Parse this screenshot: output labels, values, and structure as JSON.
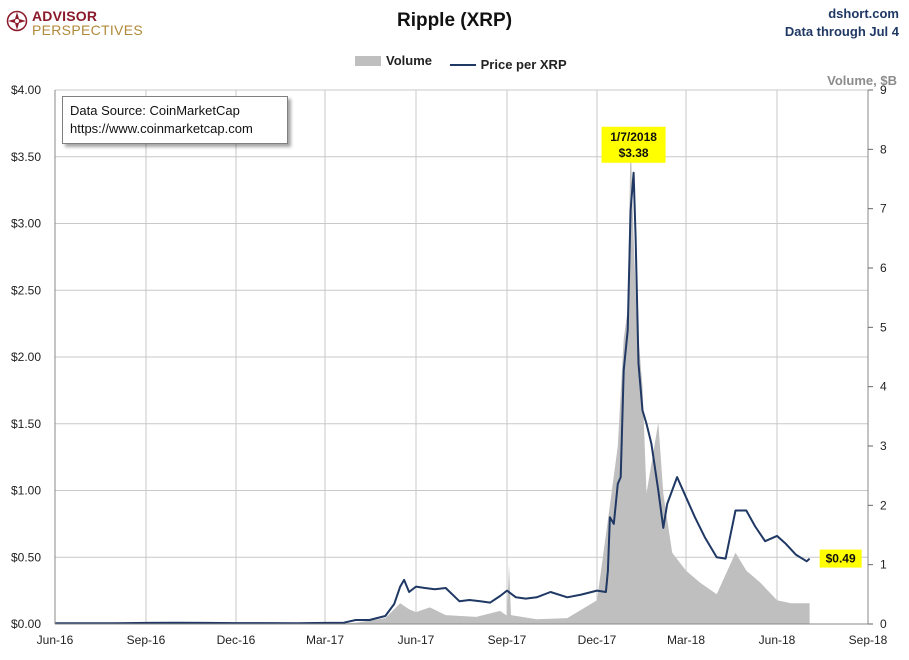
{
  "logo": {
    "line1": "ADVISOR",
    "line2": "PERSPECTIVES"
  },
  "header": {
    "site": "dshort.com",
    "date_note": "Data through Jul 4"
  },
  "source_box": {
    "line1": "Data Source: CoinMarketCap",
    "line2": "https://www.coinmarketcap.com"
  },
  "colors": {
    "price": "#1f3864",
    "volume": "#bfbfbf",
    "callout": "#ffff00",
    "brand": "#8b1a2b",
    "brand2": "#b08a3a"
  },
  "chart_data": {
    "type": "line",
    "title": "Ripple (XRP)",
    "xlabel": "",
    "ylabel": "",
    "y2label": "Volume, $B",
    "legend": {
      "position": "top-center",
      "entries": [
        "Volume",
        "Price per XRP"
      ]
    },
    "grid": true,
    "x_ticks": [
      "Jun-16",
      "Sep-16",
      "Dec-16",
      "Mar-17",
      "Jun-17",
      "Sep-17",
      "Dec-17",
      "Mar-18",
      "Jun-18",
      "Sep-18"
    ],
    "y_ticks": [
      "$0.00",
      "$0.50",
      "$1.00",
      "$1.50",
      "$2.00",
      "$2.50",
      "$3.00",
      "$3.50",
      "$4.00"
    ],
    "y2_ticks": [
      "0",
      "1",
      "2",
      "3",
      "4",
      "5",
      "6",
      "7",
      "8",
      "9"
    ],
    "ylim": [
      0,
      4
    ],
    "y2lim": [
      0,
      9
    ],
    "annotations": [
      {
        "date": "2018-01-07",
        "lines": [
          "1/7/2018",
          "$3.38"
        ]
      },
      {
        "date": "2018-07-04",
        "lines": [
          "$0.49"
        ]
      }
    ],
    "series": [
      {
        "name": "Price per XRP",
        "axis": "left",
        "points": [
          [
            "2016-06-01",
            0.006
          ],
          [
            "2016-07-01",
            0.006
          ],
          [
            "2016-08-01",
            0.006
          ],
          [
            "2016-09-01",
            0.008
          ],
          [
            "2016-10-01",
            0.009
          ],
          [
            "2016-11-01",
            0.008
          ],
          [
            "2016-12-01",
            0.007
          ],
          [
            "2017-01-01",
            0.007
          ],
          [
            "2017-02-01",
            0.006
          ],
          [
            "2017-03-01",
            0.008
          ],
          [
            "2017-03-20",
            0.01
          ],
          [
            "2017-04-01",
            0.03
          ],
          [
            "2017-04-15",
            0.03
          ],
          [
            "2017-05-01",
            0.06
          ],
          [
            "2017-05-10",
            0.15
          ],
          [
            "2017-05-16",
            0.28
          ],
          [
            "2017-05-20",
            0.33
          ],
          [
            "2017-05-25",
            0.24
          ],
          [
            "2017-06-01",
            0.28
          ],
          [
            "2017-06-10",
            0.27
          ],
          [
            "2017-06-20",
            0.26
          ],
          [
            "2017-07-01",
            0.27
          ],
          [
            "2017-07-15",
            0.17
          ],
          [
            "2017-07-25",
            0.18
          ],
          [
            "2017-08-05",
            0.17
          ],
          [
            "2017-08-15",
            0.16
          ],
          [
            "2017-08-25",
            0.21
          ],
          [
            "2017-09-01",
            0.25
          ],
          [
            "2017-09-10",
            0.2
          ],
          [
            "2017-09-20",
            0.19
          ],
          [
            "2017-10-01",
            0.2
          ],
          [
            "2017-10-15",
            0.24
          ],
          [
            "2017-11-01",
            0.2
          ],
          [
            "2017-11-15",
            0.22
          ],
          [
            "2017-12-01",
            0.25
          ],
          [
            "2017-12-10",
            0.24
          ],
          [
            "2017-12-12",
            0.4
          ],
          [
            "2017-12-14",
            0.8
          ],
          [
            "2017-12-18",
            0.75
          ],
          [
            "2017-12-22",
            1.05
          ],
          [
            "2017-12-25",
            1.1
          ],
          [
            "2017-12-28",
            1.9
          ],
          [
            "2018-01-01",
            2.2
          ],
          [
            "2018-01-04",
            3.1
          ],
          [
            "2018-01-07",
            3.38
          ],
          [
            "2018-01-09",
            2.9
          ],
          [
            "2018-01-12",
            1.95
          ],
          [
            "2018-01-16",
            1.6
          ],
          [
            "2018-01-20",
            1.5
          ],
          [
            "2018-01-25",
            1.35
          ],
          [
            "2018-02-01",
            1.0
          ],
          [
            "2018-02-06",
            0.72
          ],
          [
            "2018-02-10",
            0.9
          ],
          [
            "2018-02-20",
            1.1
          ],
          [
            "2018-03-01",
            0.95
          ],
          [
            "2018-03-10",
            0.8
          ],
          [
            "2018-03-20",
            0.65
          ],
          [
            "2018-04-01",
            0.5
          ],
          [
            "2018-04-10",
            0.49
          ],
          [
            "2018-04-20",
            0.85
          ],
          [
            "2018-05-01",
            0.85
          ],
          [
            "2018-05-10",
            0.73
          ],
          [
            "2018-05-20",
            0.62
          ],
          [
            "2018-06-01",
            0.66
          ],
          [
            "2018-06-10",
            0.6
          ],
          [
            "2018-06-20",
            0.52
          ],
          [
            "2018-07-01",
            0.47
          ],
          [
            "2018-07-04",
            0.49
          ]
        ]
      },
      {
        "name": "Volume",
        "axis": "right",
        "points": [
          [
            "2016-06-01",
            0.0
          ],
          [
            "2017-03-01",
            0.0
          ],
          [
            "2017-04-01",
            0.02
          ],
          [
            "2017-05-01",
            0.1
          ],
          [
            "2017-05-16",
            0.35
          ],
          [
            "2017-05-25",
            0.25
          ],
          [
            "2017-06-01",
            0.2
          ],
          [
            "2017-06-15",
            0.28
          ],
          [
            "2017-07-01",
            0.15
          ],
          [
            "2017-08-01",
            0.12
          ],
          [
            "2017-08-25",
            0.22
          ],
          [
            "2017-09-01",
            0.14
          ],
          [
            "2017-09-03",
            1.0
          ],
          [
            "2017-09-05",
            0.15
          ],
          [
            "2017-10-01",
            0.08
          ],
          [
            "2017-11-01",
            0.1
          ],
          [
            "2017-12-01",
            0.4
          ],
          [
            "2017-12-14",
            2.0
          ],
          [
            "2017-12-22",
            3.0
          ],
          [
            "2017-12-28",
            4.8
          ],
          [
            "2018-01-01",
            5.3
          ],
          [
            "2018-01-04",
            8.2
          ],
          [
            "2018-01-07",
            6.5
          ],
          [
            "2018-01-10",
            5.2
          ],
          [
            "2018-01-16",
            4.0
          ],
          [
            "2018-01-20",
            2.2
          ],
          [
            "2018-02-01",
            3.4
          ],
          [
            "2018-02-06",
            2.2
          ],
          [
            "2018-02-15",
            1.2
          ],
          [
            "2018-03-01",
            0.9
          ],
          [
            "2018-03-15",
            0.7
          ],
          [
            "2018-04-01",
            0.5
          ],
          [
            "2018-04-20",
            1.2
          ],
          [
            "2018-05-01",
            0.9
          ],
          [
            "2018-05-15",
            0.7
          ],
          [
            "2018-06-01",
            0.4
          ],
          [
            "2018-06-15",
            0.35
          ],
          [
            "2018-07-04",
            0.35
          ]
        ]
      }
    ]
  }
}
